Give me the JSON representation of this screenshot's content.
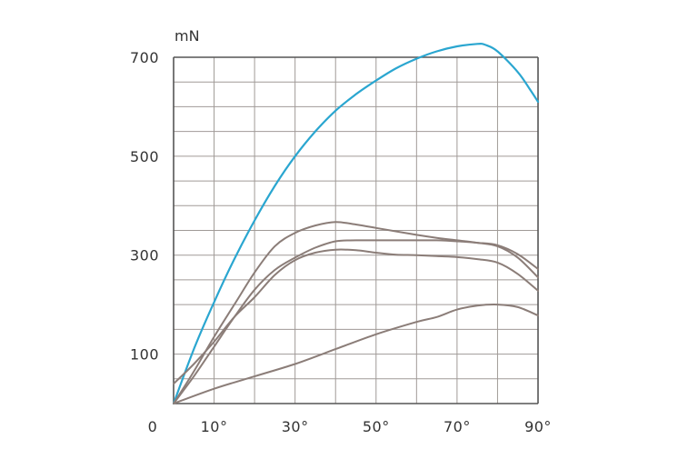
{
  "chart_data": {
    "type": "line",
    "title": "",
    "xlabel": "",
    "ylabel": "mN",
    "xlim": [
      0,
      90
    ],
    "ylim": [
      0,
      700
    ],
    "grid": true,
    "legend": "none",
    "x_ticks": [
      {
        "value": 0,
        "label": "0"
      },
      {
        "value": 10,
        "label": "10°"
      },
      {
        "value": 30,
        "label": "30°"
      },
      {
        "value": 50,
        "label": "50°"
      },
      {
        "value": 70,
        "label": "70°"
      },
      {
        "value": 90,
        "label": "90°"
      }
    ],
    "y_ticks": [
      {
        "value": 100,
        "label": "100"
      },
      {
        "value": 300,
        "label": "300"
      },
      {
        "value": 500,
        "label": "500"
      },
      {
        "value": 700,
        "label": "700"
      }
    ],
    "series": [
      {
        "color": "#2aa6d0",
        "points": [
          [
            0,
            0
          ],
          [
            5,
            110
          ],
          [
            10,
            205
          ],
          [
            15,
            292
          ],
          [
            20,
            370
          ],
          [
            25,
            440
          ],
          [
            30,
            500
          ],
          [
            35,
            550
          ],
          [
            40,
            592
          ],
          [
            45,
            625
          ],
          [
            50,
            653
          ],
          [
            55,
            678
          ],
          [
            60,
            697
          ],
          [
            65,
            712
          ],
          [
            70,
            722
          ],
          [
            75,
            727
          ],
          [
            77,
            725
          ],
          [
            80,
            712
          ],
          [
            85,
            670
          ],
          [
            88,
            635
          ],
          [
            90,
            610
          ]
        ]
      },
      {
        "color": "#8b7d78",
        "points": [
          [
            0,
            0
          ],
          [
            5,
            65
          ],
          [
            10,
            135
          ],
          [
            15,
            200
          ],
          [
            20,
            265
          ],
          [
            25,
            318
          ],
          [
            30,
            345
          ],
          [
            35,
            360
          ],
          [
            40,
            367
          ],
          [
            45,
            362
          ],
          [
            50,
            355
          ],
          [
            55,
            348
          ],
          [
            60,
            341
          ],
          [
            65,
            335
          ],
          [
            70,
            330
          ],
          [
            75,
            325
          ],
          [
            80,
            318
          ],
          [
            85,
            295
          ],
          [
            90,
            255
          ]
        ]
      },
      {
        "color": "#8b7d78",
        "points": [
          [
            0,
            0
          ],
          [
            5,
            55
          ],
          [
            10,
            115
          ],
          [
            15,
            175
          ],
          [
            20,
            230
          ],
          [
            25,
            270
          ],
          [
            30,
            295
          ],
          [
            35,
            315
          ],
          [
            40,
            328
          ],
          [
            45,
            330
          ],
          [
            50,
            330
          ],
          [
            55,
            330
          ],
          [
            60,
            330
          ],
          [
            65,
            330
          ],
          [
            70,
            328
          ],
          [
            75,
            325
          ],
          [
            80,
            320
          ],
          [
            85,
            302
          ],
          [
            90,
            272
          ]
        ]
      },
      {
        "color": "#8b7d78",
        "points": [
          [
            0,
            40
          ],
          [
            5,
            80
          ],
          [
            10,
            125
          ],
          [
            15,
            175
          ],
          [
            20,
            215
          ],
          [
            25,
            260
          ],
          [
            30,
            290
          ],
          [
            35,
            305
          ],
          [
            40,
            311
          ],
          [
            45,
            310
          ],
          [
            50,
            305
          ],
          [
            55,
            301
          ],
          [
            60,
            300
          ],
          [
            65,
            298
          ],
          [
            70,
            296
          ],
          [
            75,
            292
          ],
          [
            80,
            285
          ],
          [
            85,
            262
          ],
          [
            90,
            228
          ]
        ]
      },
      {
        "color": "#8b7d78",
        "points": [
          [
            0,
            0
          ],
          [
            10,
            30
          ],
          [
            20,
            55
          ],
          [
            30,
            80
          ],
          [
            40,
            110
          ],
          [
            50,
            140
          ],
          [
            60,
            165
          ],
          [
            65,
            175
          ],
          [
            70,
            190
          ],
          [
            75,
            198
          ],
          [
            80,
            200
          ],
          [
            85,
            195
          ],
          [
            90,
            178
          ]
        ]
      }
    ]
  }
}
